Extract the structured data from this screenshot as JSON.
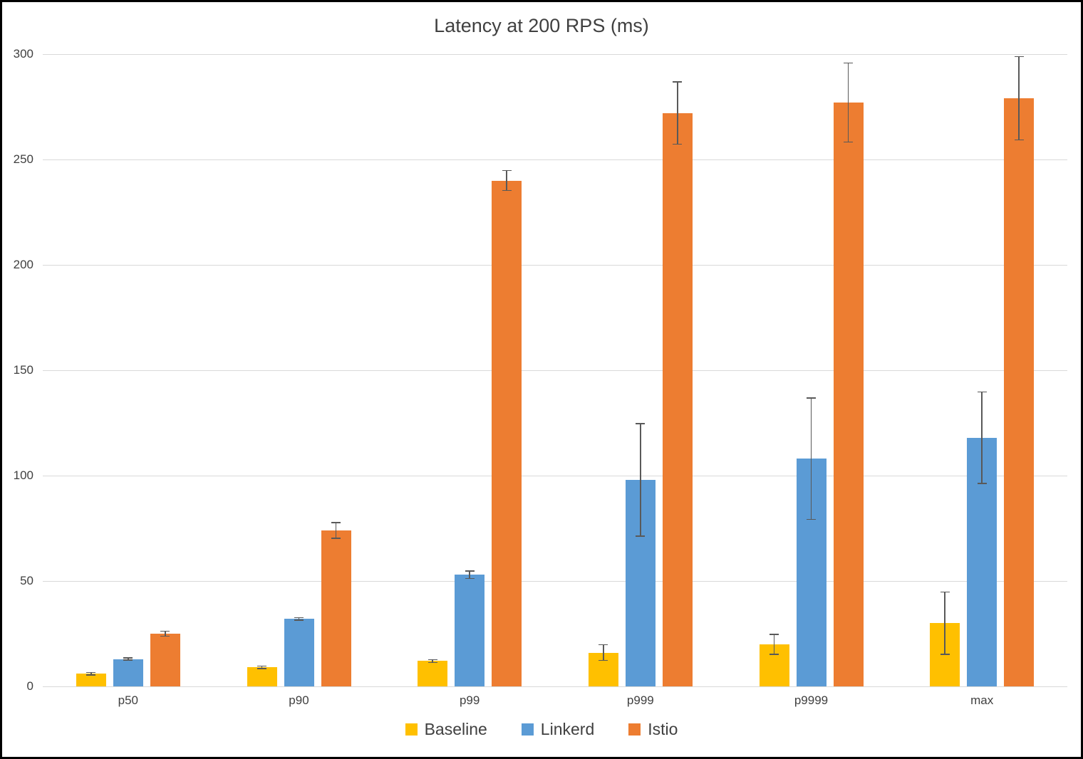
{
  "chart_data": {
    "type": "bar",
    "title": "Latency at 200 RPS (ms)",
    "categories": [
      "p50",
      "p90",
      "p99",
      "p999",
      "p9999",
      "max"
    ],
    "series": [
      {
        "name": "Baseline",
        "color": "#FFC000",
        "values": [
          6,
          9,
          12,
          16,
          20,
          30
        ],
        "errors": [
          0.8,
          0.8,
          1,
          4,
          5,
          15
        ]
      },
      {
        "name": "Linkerd",
        "color": "#5B9BD5",
        "values": [
          13,
          32,
          53,
          98,
          108,
          118
        ],
        "errors": [
          0.8,
          0.8,
          2,
          27,
          29,
          22
        ]
      },
      {
        "name": "Istio",
        "color": "#ED7D31",
        "values": [
          25,
          74,
          240,
          272,
          277,
          279
        ],
        "errors": [
          1.5,
          4,
          5,
          15,
          19,
          20
        ]
      }
    ],
    "xlabel": "",
    "ylabel": "",
    "ylim": [
      0,
      300
    ],
    "y_ticks": [
      0,
      50,
      100,
      150,
      200,
      250,
      300
    ],
    "grid": true,
    "legend_position": "bottom",
    "error_bar_color": "#595959",
    "gridline_color": "#D9D9D9",
    "text_color": "#404040"
  }
}
